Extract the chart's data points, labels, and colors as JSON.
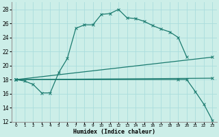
{
  "title": "",
  "xlabel": "Humidex (Indice chaleur)",
  "bg_color": "#cceee8",
  "line_color": "#1a7a6e",
  "grid_color": "#aadddd",
  "xlim": [
    -0.5,
    23.5
  ],
  "ylim": [
    12,
    29
  ],
  "yticks": [
    12,
    14,
    16,
    18,
    20,
    22,
    24,
    26,
    28
  ],
  "xticks": [
    0,
    1,
    2,
    3,
    4,
    5,
    6,
    7,
    8,
    9,
    10,
    11,
    12,
    13,
    14,
    15,
    16,
    17,
    18,
    19,
    20,
    21,
    22,
    23
  ],
  "curve1_x": [
    0,
    1,
    2,
    3,
    4,
    5,
    6,
    7,
    8,
    9,
    10,
    11,
    12,
    13,
    14,
    15,
    16,
    17,
    18,
    19,
    20
  ],
  "curve1_y": [
    18.0,
    17.8,
    17.3,
    16.1,
    16.1,
    19.0,
    21.0,
    25.3,
    25.8,
    25.8,
    27.3,
    27.4,
    28.0,
    26.8,
    26.7,
    26.3,
    25.7,
    25.2,
    24.8,
    24.0,
    21.2
  ],
  "curve2_x": [
    0,
    23
  ],
  "curve2_y": [
    18.0,
    21.2
  ],
  "curve3_x": [
    0,
    23
  ],
  "curve3_y": [
    18.0,
    18.2
  ],
  "curve4_x": [
    0,
    19,
    20,
    21,
    22,
    23
  ],
  "curve4_y": [
    18.0,
    18.0,
    18.0,
    16.3,
    14.5,
    12.2
  ]
}
